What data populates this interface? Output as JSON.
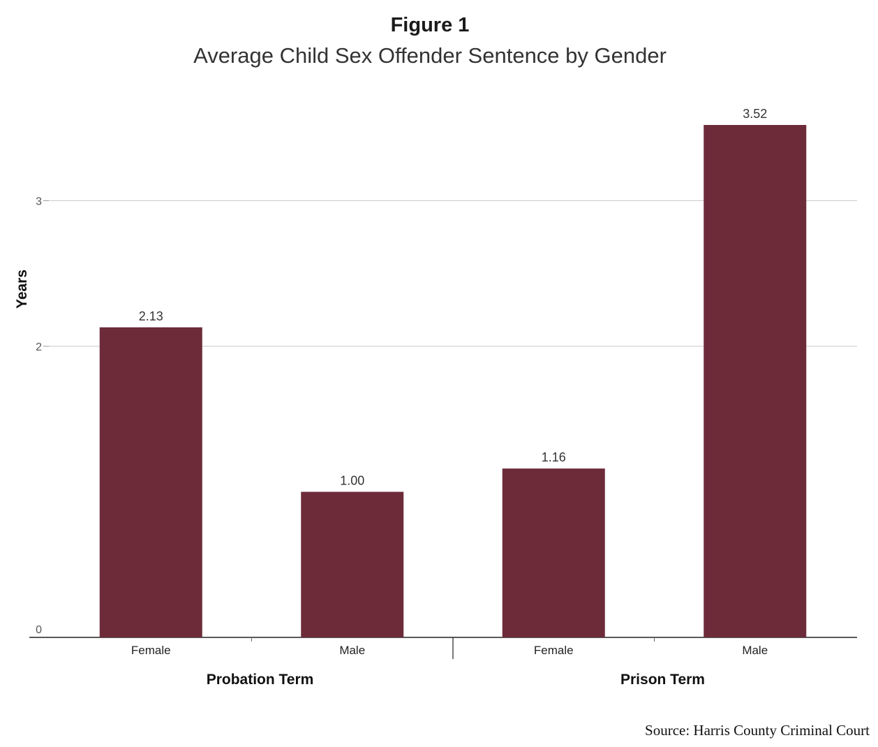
{
  "title": "Figure 1",
  "subtitle": "Average Child Sex Offender Sentence by Gender",
  "source": "Source: Harris County Criminal Court",
  "colors": {
    "bar": "#6d2b3a",
    "grid": "#c8c8c8",
    "axis": "#222222"
  },
  "chart_data": {
    "type": "bar",
    "title": "Average Child Sex Offender Sentence by Gender",
    "ylabel": "Years",
    "ylim": [
      0,
      3.52
    ],
    "yticks": [
      0,
      2,
      3
    ],
    "groups": [
      {
        "label": "Probation Term",
        "categories": [
          "Female",
          "Male"
        ],
        "values": [
          2.13,
          1.0
        ],
        "labels": [
          "2.13",
          "1.00"
        ]
      },
      {
        "label": "Prison Term",
        "categories": [
          "Female",
          "Male"
        ],
        "values": [
          1.16,
          3.52
        ],
        "labels": [
          "1.16",
          "3.52"
        ]
      }
    ],
    "grid": true
  }
}
